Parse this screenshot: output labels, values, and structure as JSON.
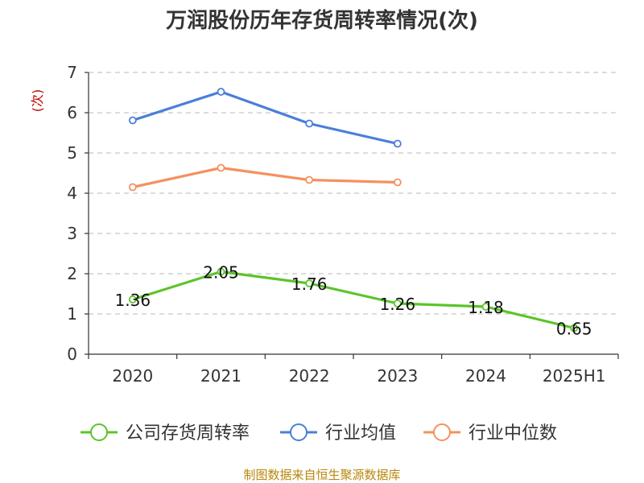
{
  "chart_data": {
    "type": "line",
    "title": "万润股份历年存货周转率情况(次)",
    "ylabel": "(次)",
    "xlabel": "",
    "categories": [
      "2020",
      "2021",
      "2022",
      "2023",
      "2024",
      "2025H1"
    ],
    "ylim": [
      0,
      7
    ],
    "yticks": [
      0,
      1,
      2,
      3,
      4,
      5,
      6,
      7
    ],
    "grid": true,
    "legend_position": "bottom",
    "series": [
      {
        "name": "公司存货周转率",
        "color": "#5cc42a",
        "values": [
          1.36,
          2.05,
          1.76,
          1.26,
          1.18,
          0.65
        ],
        "labels": [
          "1.36",
          "2.05",
          "1.76",
          "1.26",
          "1.18",
          "0.65"
        ]
      },
      {
        "name": "行业均值",
        "color": "#4a7fd8",
        "values": [
          5.81,
          6.52,
          5.73,
          5.23,
          null,
          null
        ]
      },
      {
        "name": "行业中位数",
        "color": "#f4915e",
        "values": [
          4.15,
          4.63,
          4.33,
          4.27,
          null,
          null
        ]
      }
    ]
  },
  "source": "制图数据来自恒生聚源数据库"
}
